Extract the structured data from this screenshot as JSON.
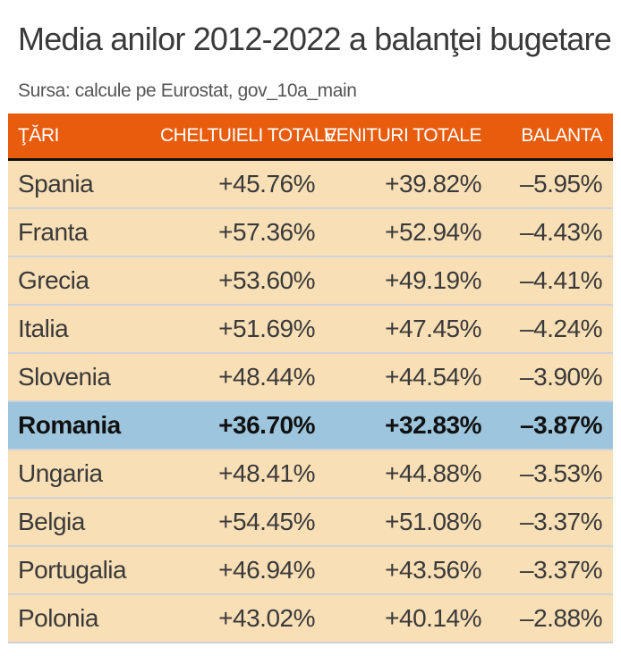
{
  "title": "Media anilor 2012-2022 a balanţei bugetare",
  "subtitle": "Sursa: calcule pe Eurostat, gov_10a_main",
  "colors": {
    "header_bg": "#e85c0e",
    "row_bg": "#f8dfb6",
    "highlight_bg": "#9dc6de",
    "divider": "#cfd3d9"
  },
  "chart_data": {
    "type": "table",
    "title": "Media anilor 2012-2022 a balanţei bugetare",
    "subtitle": "Sursa: calcule pe Eurostat, gov_10a_main",
    "columns": [
      "ŢĂRI",
      "CHELTUIELI TOTALE",
      "VENITURI TOTALE",
      "BALANTA"
    ],
    "highlighted_row": "Romania",
    "rows": [
      [
        "Spania",
        "+45.76%",
        "+39.82%",
        "–5.95%"
      ],
      [
        "Franta",
        "+57.36%",
        "+52.94%",
        "–4.43%"
      ],
      [
        "Grecia",
        "+53.60%",
        "+49.19%",
        "–4.41%"
      ],
      [
        "Italia",
        "+51.69%",
        "+47.45%",
        "–4.24%"
      ],
      [
        "Slovenia",
        "+48.44%",
        "+44.54%",
        "–3.90%"
      ],
      [
        "Romania",
        "+36.70%",
        "+32.83%",
        "–3.87%"
      ],
      [
        "Ungaria",
        "+48.41%",
        "+44.88%",
        "–3.53%"
      ],
      [
        "Belgia",
        "+54.45%",
        "+51.08%",
        "–3.37%"
      ],
      [
        "Portugalia",
        "+46.94%",
        "+43.56%",
        "–3.37%"
      ],
      [
        "Polonia",
        "+43.02%",
        "+40.14%",
        "–2.88%"
      ]
    ]
  }
}
